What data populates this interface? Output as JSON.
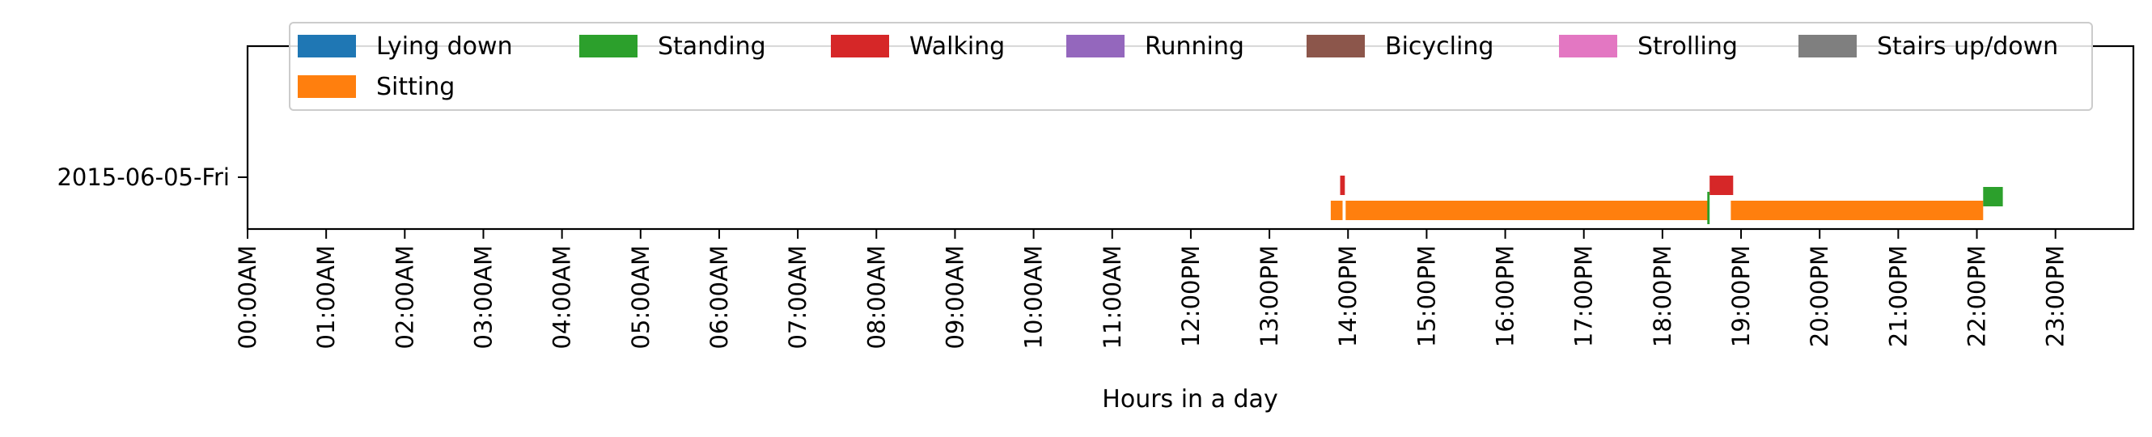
{
  "chart_data": {
    "type": "timeline",
    "title": "",
    "xlabel": "Hours in a day",
    "ylabel": "",
    "xlim": [
      0,
      24
    ],
    "x_tick_labels": [
      "00:00AM",
      "01:00AM",
      "02:00AM",
      "03:00AM",
      "04:00AM",
      "05:00AM",
      "06:00AM",
      "07:00AM",
      "08:00AM",
      "09:00AM",
      "10:00AM",
      "11:00AM",
      "12:00PM",
      "13:00PM",
      "14:00PM",
      "15:00PM",
      "16:00PM",
      "17:00PM",
      "18:00PM",
      "19:00PM",
      "20:00PM",
      "21:00PM",
      "22:00PM",
      "23:00PM"
    ],
    "categories": [
      "2015-06-05-Fri"
    ],
    "legend": {
      "position": "top",
      "entries": [
        {
          "name": "Lying down",
          "color": "#1f77b4"
        },
        {
          "name": "Standing",
          "color": "#2ca02c"
        },
        {
          "name": "Walking",
          "color": "#d62728"
        },
        {
          "name": "Running",
          "color": "#9467bd"
        },
        {
          "name": "Bicycling",
          "color": "#8c564b"
        },
        {
          "name": "Strolling",
          "color": "#e377c2"
        },
        {
          "name": "Stairs up/down",
          "color": "#7f7f7f"
        },
        {
          "name": "Sitting",
          "color": "#ff7f0e"
        }
      ]
    },
    "series": [
      {
        "name": "Sitting",
        "color": "#ff7f0e",
        "intervals": [
          [
            13.78,
            13.93
          ],
          [
            13.97,
            18.58
          ],
          [
            18.87,
            22.08
          ]
        ]
      },
      {
        "name": "Walking",
        "color": "#d62728",
        "intervals": [
          [
            13.9,
            13.96
          ],
          [
            18.6,
            18.9
          ]
        ]
      },
      {
        "name": "Standing",
        "color": "#2ca02c",
        "intervals": [
          [
            18.57,
            18.6
          ],
          [
            22.08,
            22.33
          ]
        ]
      }
    ]
  }
}
